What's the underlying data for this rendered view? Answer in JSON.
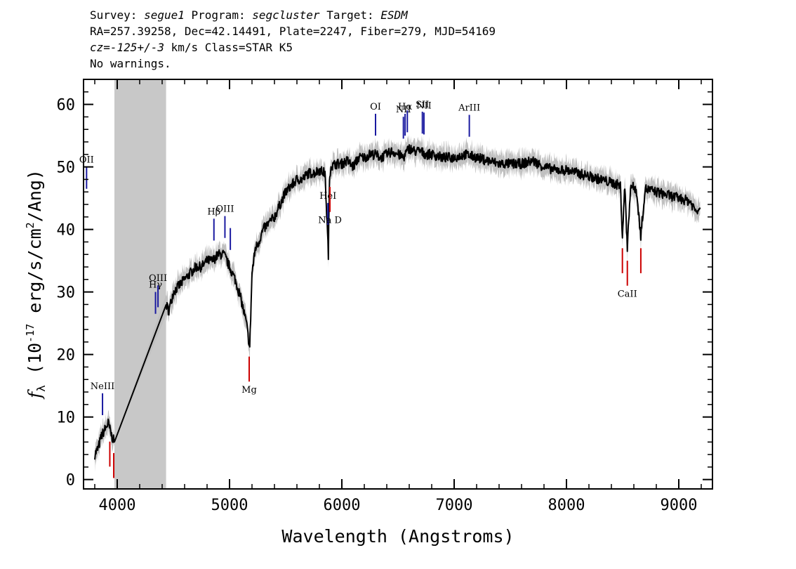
{
  "header": {
    "survey_label": "Survey:",
    "survey": "segue1",
    "program_label": "Program:",
    "program": "segcluster",
    "target_label": "Target:",
    "target": "ESDM",
    "line2": "RA=257.39258, Dec=42.14491, Plate=2247, Fiber=279, MJD=54169",
    "cz_label": "cz=",
    "cz_value": "-125+/-3",
    "cz_rest": " km/s Class=STAR K5",
    "line4": "No warnings."
  },
  "chart_data": {
    "type": "line",
    "xlabel": "Wavelength (Angstroms)",
    "ylabel_prefix": "f",
    "ylabel_sub": "λ",
    "ylabel_rest_a": " (10",
    "ylabel_exp": "-17",
    "ylabel_rest_b": " erg/s/cm",
    "ylabel_exp2": "2",
    "ylabel_rest_c": "/Ang)",
    "xlim": [
      3700,
      9300
    ],
    "ylim": [
      -1.5,
      64
    ],
    "xticks": [
      4000,
      5000,
      6000,
      7000,
      8000,
      9000
    ],
    "xtick_labels": [
      "4000",
      "5000",
      "6000",
      "7000",
      "8000",
      "9000"
    ],
    "yticks": [
      0,
      10,
      20,
      30,
      40,
      50,
      60
    ],
    "ytick_labels": [
      "0",
      "10",
      "20",
      "30",
      "40",
      "50",
      "60"
    ],
    "masked_region": [
      3975,
      4435
    ],
    "series": [
      {
        "x": [
          3800,
          3830,
          3860,
          3890,
          3920,
          3950,
          3975,
          4435,
          4460,
          4500,
          4550,
          4600,
          4650,
          4700,
          4750,
          4800,
          4850,
          4900,
          4950,
          5000,
          5050,
          5100,
          5150,
          5180,
          5200,
          5230,
          5260,
          5300,
          5350,
          5400,
          5450,
          5500,
          5550,
          5600,
          5650,
          5700,
          5750,
          5800,
          5850,
          5880,
          5890,
          5900,
          5950,
          6000,
          6050,
          6100,
          6150,
          6200,
          6250,
          6300,
          6350,
          6400,
          6450,
          6500,
          6550,
          6563,
          6600,
          6650,
          6700,
          6750,
          6800,
          6900,
          7000,
          7100,
          7200,
          7300,
          7400,
          7500,
          7600,
          7700,
          7800,
          7900,
          8000,
          8100,
          8200,
          8300,
          8400,
          8480,
          8498,
          8520,
          8542,
          8570,
          8620,
          8662,
          8700,
          8800,
          8900,
          9000,
          9100,
          9150,
          9190
        ],
        "y": [
          4,
          5,
          7,
          8,
          9,
          7,
          6,
          28,
          27,
          30,
          31,
          32,
          33,
          34,
          34,
          35,
          35,
          36,
          36,
          34,
          32,
          29,
          25,
          21,
          33,
          37,
          38,
          40,
          41,
          42,
          44,
          46,
          47,
          48,
          48,
          49,
          49,
          49.5,
          49,
          36,
          48,
          50,
          50.5,
          50.5,
          51,
          50,
          51.5,
          51.5,
          52,
          52,
          51.5,
          52,
          52.5,
          52,
          51.5,
          52,
          53,
          52.5,
          52.5,
          52,
          52,
          51.5,
          51.5,
          52,
          51.5,
          51,
          50.5,
          50.5,
          50.5,
          51,
          50,
          49.5,
          49.5,
          49,
          48.5,
          48,
          47.5,
          47,
          39,
          47,
          37,
          47,
          46.5,
          39,
          46.5,
          46,
          45.5,
          45,
          44.5,
          43,
          43.5
        ]
      }
    ],
    "line_marks_emission": [
      {
        "label": "OII",
        "x": 3727
      },
      {
        "label": "NeIII",
        "x": 3869
      },
      {
        "label": "Hγ",
        "x": 4341
      },
      {
        "label": "OIII",
        "x": 4363
      },
      {
        "label": "Hβ",
        "x": 4861
      },
      {
        "label": "OIII",
        "x": 4959
      },
      {
        "label": "",
        "x": 5007
      },
      {
        "label": "HeI",
        "x": 5876
      },
      {
        "label": "OI",
        "x": 6300
      },
      {
        "label": "NII",
        "x": 6548
      },
      {
        "label": "Hα",
        "x": 6563
      },
      {
        "label": "",
        "x": 6583
      },
      {
        "label": "SII",
        "x": 6717
      },
      {
        "label": "NII",
        "x": 6731
      },
      {
        "label": "ArIII",
        "x": 7135
      }
    ],
    "line_marks_absorption": [
      {
        "label": "",
        "x": 3934
      },
      {
        "label": "",
        "x": 3969
      },
      {
        "label": "Mg",
        "x": 5175
      },
      {
        "label": "Na D",
        "x": 5894
      },
      {
        "label": "",
        "x": 8498
      },
      {
        "label": "CaII",
        "x": 8542
      },
      {
        "label": "",
        "x": 8662
      }
    ],
    "colors": {
      "emission": "#1a1aa0",
      "absorption": "#cc0000",
      "error_band": "#c0c0c0",
      "mask": "#c8c8c8",
      "spectrum": "#000000"
    }
  }
}
